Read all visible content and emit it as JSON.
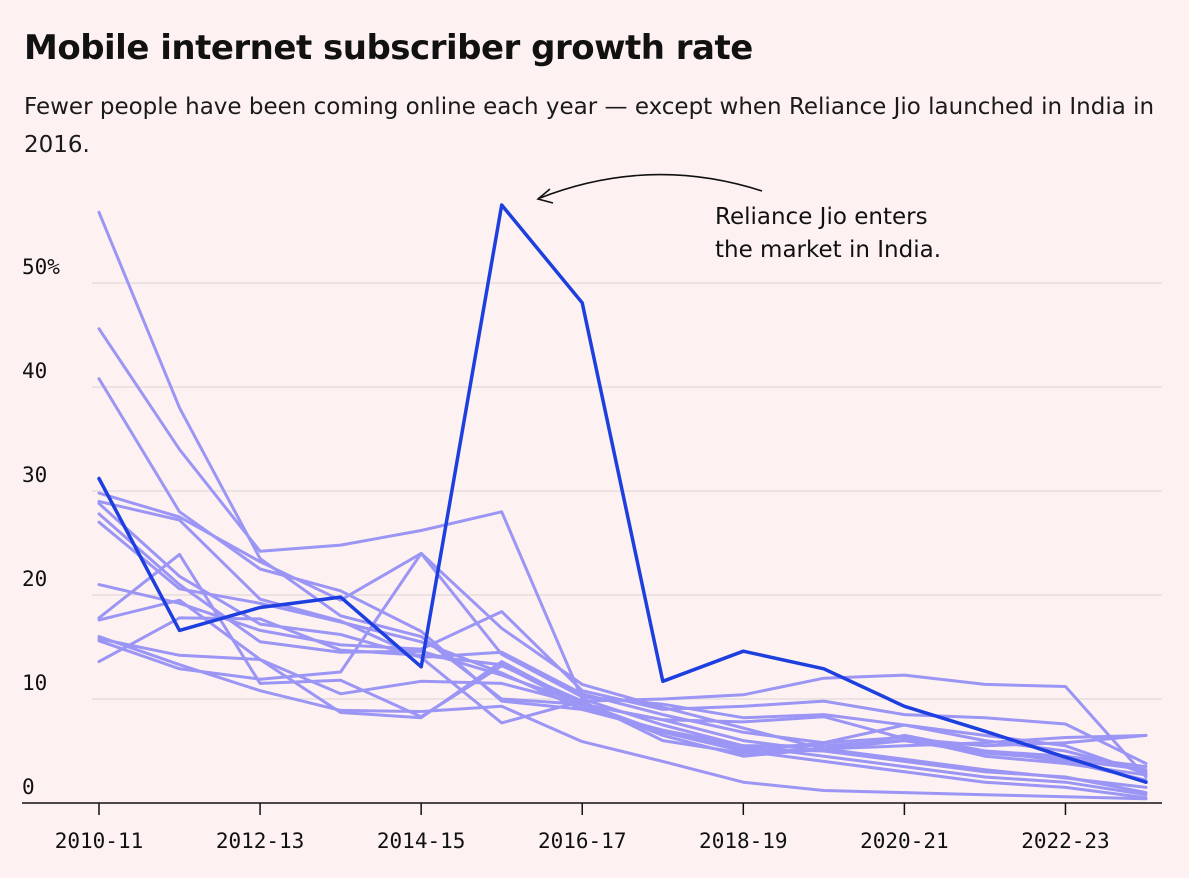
{
  "title": "Mobile internet subscriber growth rate",
  "subtitle": "Fewer people have been coming online each year — except when Reliance Jio launched in India in 2016.",
  "colors": {
    "background": "#fdf2f1",
    "highlight": "#1d3fe0",
    "other": "#9b95f5",
    "grid": "#e6dcdc"
  },
  "chart_data": {
    "type": "line",
    "title": "Mobile internet subscriber growth rate",
    "xlabel": "",
    "ylabel": "",
    "ylim": [
      0,
      60
    ],
    "grid": true,
    "x": [
      "2010-11",
      "2011-12",
      "2012-13",
      "2013-14",
      "2014-15",
      "2015-16",
      "2016-17",
      "2017-18",
      "2018-19",
      "2019-20",
      "2020-21",
      "2021-22",
      "2022-23",
      "2023-24"
    ],
    "x_tick_labels": [
      "2010-11",
      "2012-13",
      "2014-15",
      "2016-17",
      "2018-19",
      "2020-21",
      "2022-23"
    ],
    "y_tick_labels": [
      "0",
      "10",
      "20",
      "30",
      "40",
      "50%"
    ],
    "y_ticks": [
      0,
      10,
      20,
      30,
      40,
      50
    ],
    "highlight": {
      "values": [
        31.2,
        16.6,
        18.8,
        19.8,
        13.1,
        57.5,
        48.1,
        11.7,
        14.6,
        12.9,
        9.3,
        6.9,
        4.4,
        2.0
      ]
    },
    "other_series": [
      [
        56.8,
        38,
        23.5,
        18,
        16,
        10,
        9.5,
        8,
        6,
        5,
        4,
        3,
        2.5,
        1
      ],
      [
        45.6,
        34,
        24.2,
        24.8,
        26.2,
        28,
        10,
        7.5,
        5.5,
        4.5,
        3.5,
        2.5,
        2,
        0.8
      ],
      [
        40.8,
        28,
        22.5,
        20.4,
        16.5,
        9.8,
        9,
        7,
        5,
        4,
        3,
        2,
        1.5,
        0.5
      ],
      [
        29.8,
        27.5,
        23.2,
        19.5,
        24,
        16.8,
        11.4,
        9.2,
        7.2,
        5.2,
        4.2,
        3.2,
        2.4,
        1.5
      ],
      [
        29,
        27.2,
        19.6,
        17.5,
        14,
        14.5,
        10.5,
        8.5,
        6.8,
        5.8,
        7.5,
        6,
        5,
        3
      ],
      [
        27,
        20.6,
        19.2,
        17.4,
        15.5,
        12.5,
        9,
        7,
        5.5,
        5.5,
        6,
        5,
        4.5,
        3.5
      ],
      [
        21,
        19.2,
        16.6,
        15.2,
        14.8,
        18.4,
        10.8,
        9,
        9.3,
        9.8,
        8.5,
        8.2,
        7.6,
        3.8
      ],
      [
        17.8,
        23.9,
        11.5,
        11.8,
        8.3,
        13.2,
        9.8,
        10,
        10.4,
        12,
        12.3,
        11.4,
        11.2,
        2.5
      ],
      [
        16,
        13.3,
        10.8,
        8.9,
        8.8,
        9.3,
        5.9,
        4,
        2,
        1.2,
        1,
        0.8,
        0.6,
        0.4
      ],
      [
        17.6,
        19.5,
        13.8,
        10.5,
        11.7,
        11.5,
        9.5,
        8,
        7.8,
        8.3,
        6.2,
        5.5,
        5.8,
        6.5
      ],
      [
        15.6,
        12.9,
        11.9,
        12.6,
        24,
        14.3,
        10.2,
        9.5,
        8.2,
        8.5,
        7.5,
        6.5,
        5.5,
        2.8
      ],
      [
        15.8,
        14.2,
        13.8,
        8.7,
        8.2,
        13.6,
        9.5,
        6.5,
        4.5,
        5.2,
        5.5,
        5.8,
        6.3,
        6.5
      ],
      [
        13.6,
        17.8,
        17.7,
        14.7,
        14.2,
        13.3,
        9.3,
        6.8,
        5,
        5.8,
        6.3,
        4.5,
        3.8,
        2.7
      ],
      [
        28.8,
        21.8,
        17.2,
        16.2,
        14,
        7.7,
        9.8,
        6,
        4.8,
        5.2,
        6,
        4.8,
        4.2,
        3.2
      ],
      [
        27.8,
        21,
        15.5,
        14.5,
        14.6,
        12.3,
        9.6,
        6.8,
        5.2,
        5,
        6.5,
        5,
        4,
        2.2
      ]
    ],
    "annotation": {
      "text_lines": [
        "Reliance Jio enters",
        "the market in India."
      ]
    }
  }
}
